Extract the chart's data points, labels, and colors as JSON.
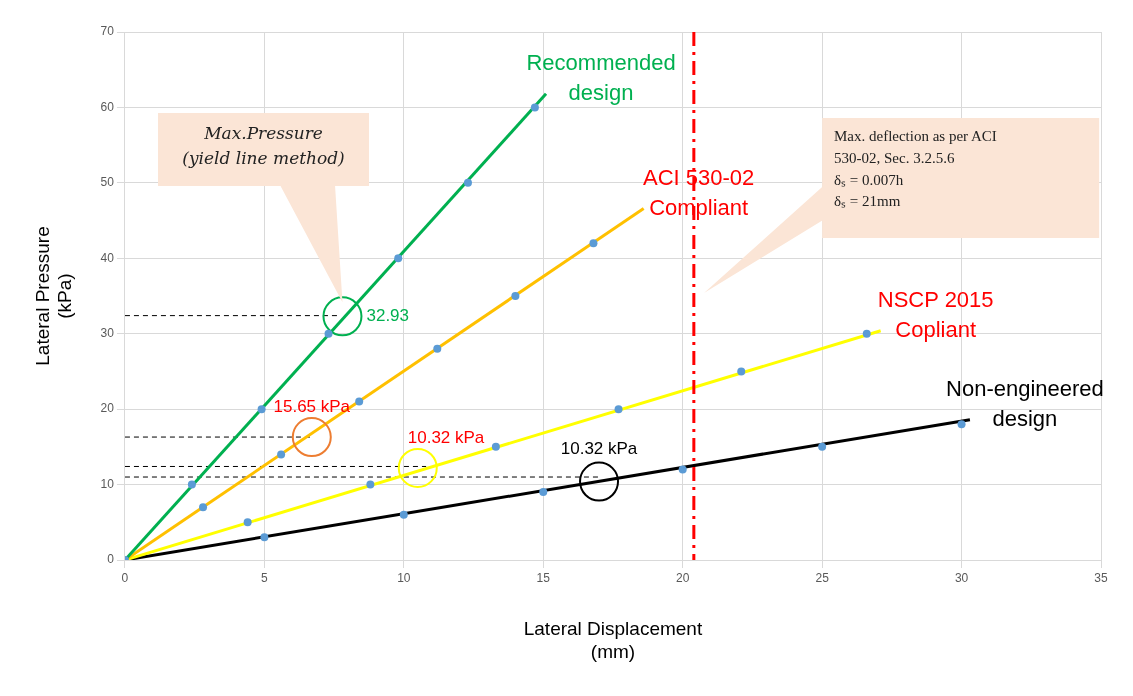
{
  "chart_data": {
    "type": "scatter",
    "xlabel": "Lateral Displacement\n(mm)",
    "ylabel": "Lateral Pressure\n(kPa)",
    "xlim": [
      0,
      35
    ],
    "xticks": [
      0,
      5,
      10,
      15,
      20,
      25,
      30,
      35
    ],
    "ylim": [
      0,
      70
    ],
    "yticks": [
      0,
      10,
      20,
      30,
      40,
      50,
      60,
      70
    ],
    "grid": true,
    "legend": false,
    "series": [
      {
        "type": "line",
        "name": "Recommended\ndesign",
        "color": "#00b050",
        "marker": "none",
        "line_style": "solid",
        "x": [
          0,
          15.1
        ],
        "values": [
          0,
          61.8
        ]
      },
      {
        "type": "line",
        "name": "ACI 530-02\nCompliant",
        "color": "#ffc000",
        "marker": "none",
        "line_style": "solid",
        "x": [
          0,
          18.6
        ],
        "values": [
          0,
          46.6
        ]
      },
      {
        "type": "line",
        "name": "NSCP 2015\nCopliant",
        "color": "#ffff00",
        "marker": "none",
        "line_style": "solid",
        "x": [
          0,
          27.1
        ],
        "values": [
          0,
          30.4
        ]
      },
      {
        "type": "line",
        "name": "Non-engineered\ndesign",
        "color": "#000000",
        "marker": "none",
        "line_style": "solid",
        "x": [
          0,
          30.3
        ],
        "values": [
          0,
          18.6
        ]
      },
      {
        "type": "scatter",
        "color": "#5b9bd5",
        "marker": "circle",
        "x": [
          0,
          2.4,
          4.9,
          7.3,
          9.8,
          12.3,
          14.7
        ],
        "values": [
          0,
          10,
          20,
          30,
          40,
          50,
          60
        ]
      },
      {
        "type": "scatter",
        "color": "#5b9bd5",
        "marker": "circle",
        "x": [
          2.8,
          5.6,
          8.4,
          11.2,
          14,
          16.8
        ],
        "values": [
          7,
          14,
          21,
          28,
          35,
          42
        ]
      },
      {
        "type": "scatter",
        "color": "#5b9bd5",
        "marker": "circle",
        "x": [
          4.4,
          8.8,
          13.3,
          17.7,
          22.1,
          26.6
        ],
        "values": [
          5,
          10,
          15,
          20,
          25,
          30
        ]
      },
      {
        "type": "scatter",
        "color": "#5b9bd5",
        "marker": "circle",
        "x": [
          5,
          10,
          15,
          20,
          25,
          30
        ],
        "values": [
          3,
          6,
          9,
          12,
          15,
          18
        ]
      },
      {
        "type": "line",
        "color": "#000000",
        "marker": "none",
        "line_style": "dashed",
        "x": [
          0,
          7.7
        ],
        "values": [
          32.4,
          32.4
        ]
      },
      {
        "type": "line",
        "color": "#000000",
        "marker": "none",
        "line_style": "dashed",
        "x": [
          0,
          6.7
        ],
        "values": [
          16.3,
          16.3
        ]
      },
      {
        "type": "line",
        "color": "#000000",
        "marker": "none",
        "line_style": "dashed",
        "x": [
          0,
          10.8
        ],
        "values": [
          12.4,
          12.4
        ]
      },
      {
        "type": "line",
        "color": "#000000",
        "marker": "none",
        "line_style": "dashed",
        "x": [
          0,
          17.1
        ],
        "values": [
          11,
          11
        ]
      },
      {
        "type": "scatter",
        "colors": [
          "#00b050",
          "#ed7d31",
          "#ffff00",
          "#000000"
        ],
        "marker": "circle",
        "x": [
          7.8,
          6.7,
          10.5,
          17
        ],
        "values": [
          32.3,
          16.3,
          12.2,
          10.4
        ]
      }
    ],
    "ref_lines": [
      {
        "axis": "x",
        "value": 20.4,
        "color": "#ff0000",
        "line_style": "dashed"
      }
    ],
    "annotations": [
      {
        "text": "32.93",
        "x": 7.8,
        "y": 32.3
      },
      {
        "text": "15.65 kPa",
        "x": 6.7,
        "y": 16.3
      },
      {
        "text": "10.32 kPa",
        "x": 10.5,
        "y": 12.2
      },
      {
        "text": "10.32 kPa",
        "x": 17,
        "y": 10.4
      },
      "Max.Pressure\n(yield line method)",
      "Max. deflection as per ACI\n530-02, Sec. 3.2.5.6\nδₛ = 0.007h\nδₛ = 21mm"
    ]
  }
}
